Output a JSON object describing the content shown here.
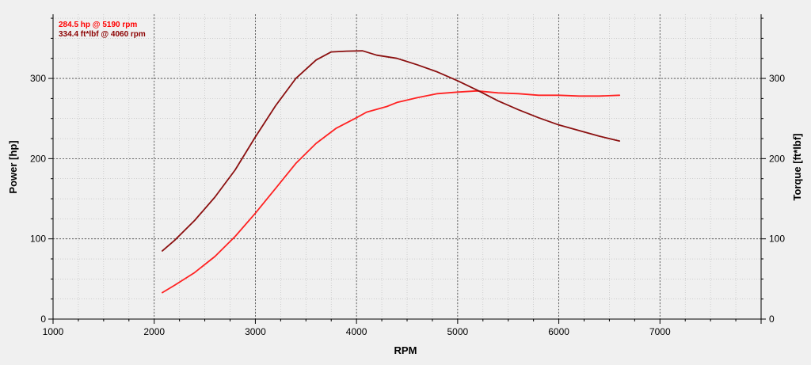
{
  "chart_data": {
    "type": "line",
    "title": "",
    "xlabel": "RPM",
    "ylabel_left": "Power [hp]",
    "ylabel_right": "Torque [ft*lbf]",
    "xlim": [
      1000,
      8000
    ],
    "ylim": [
      0,
      380
    ],
    "x_ticks": [
      1000,
      2000,
      3000,
      4000,
      5000,
      6000,
      7000
    ],
    "y_ticks": [
      0,
      100,
      200,
      300
    ],
    "grid": true,
    "legend_position": "top-left",
    "annotations": [
      "284.5 hp @ 5190 rpm",
      "334.4 ft*lbf @ 4060 rpm"
    ],
    "colors": {
      "power": "#ff2222",
      "torque": "#8b1010",
      "annotation_power": "#ff0000",
      "annotation_torque": "#8b0000",
      "plot_background": "#f0f0f0",
      "grid": "#444444"
    },
    "series": [
      {
        "key": "power",
        "axis": "left",
        "x": [
          2080,
          2200,
          2400,
          2600,
          2800,
          3000,
          3200,
          3400,
          3600,
          3800,
          4000,
          4100,
          4300,
          4400,
          4600,
          4800,
          5000,
          5190,
          5400,
          5600,
          5800,
          6000,
          6200,
          6400,
          6600
        ],
        "values": [
          33,
          42,
          58,
          78,
          103,
          132,
          163,
          194,
          219,
          238,
          251,
          258,
          265,
          270,
          276,
          281,
          283,
          284.5,
          282,
          281,
          279,
          279,
          278,
          278,
          279
        ]
      },
      {
        "key": "torque",
        "axis": "right",
        "x": [
          2080,
          2200,
          2400,
          2600,
          2800,
          3000,
          3200,
          3400,
          3600,
          3750,
          3900,
          4060,
          4200,
          4400,
          4600,
          4800,
          5000,
          5200,
          5400,
          5600,
          5800,
          6000,
          6200,
          6400,
          6600
        ],
        "values": [
          85,
          98,
          123,
          152,
          186,
          227,
          266,
          300,
          323,
          333,
          334,
          334.4,
          329,
          325,
          317,
          308,
          297,
          285,
          272,
          261,
          251,
          242,
          235,
          228,
          222
        ]
      }
    ]
  }
}
